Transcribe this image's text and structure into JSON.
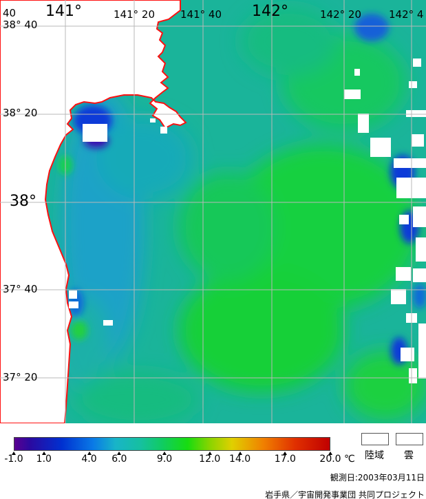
{
  "map": {
    "latitude_labels": [
      {
        "text": "38° 40",
        "lat": 38.6667
      },
      {
        "text": "38° 20",
        "lat": 38.3333
      },
      {
        "text": "38°",
        "lat": 38.0
      },
      {
        "text": "37° 40",
        "lat": 37.6667
      },
      {
        "text": "37° 20",
        "lat": 37.3333
      }
    ],
    "longitude_labels": [
      {
        "text": "141°",
        "lon": 141.0
      },
      {
        "text": "141° 20",
        "lon": 141.3333
      },
      {
        "text": "141° 40",
        "lon": 141.6667
      },
      {
        "text": "142°",
        "lon": 142.0
      },
      {
        "text": "142° 20",
        "lon": 142.3333
      },
      {
        "text": "142° 4",
        "lon": 142.6667
      }
    ],
    "edge_fragment_label": "40",
    "colors": {
      "ocean_base": "#1ab8a0",
      "warm": "#14d040",
      "cool": "#1a9ad0",
      "cold": "#0a3ad8",
      "very_cold": "#3a10b0",
      "land": "#ffffff",
      "coastline": "#ff1010",
      "grid": "#b8b8b8"
    }
  },
  "colorbar": {
    "unit": "℃",
    "min": -1.0,
    "max": 20.0,
    "ticks": [
      "-1.0",
      "1.0",
      "4.0",
      "6.0",
      "9.0",
      "12.0",
      "14.0",
      "17.0",
      "20.0"
    ],
    "tick_values": [
      -1.0,
      1.0,
      4.0,
      6.0,
      9.0,
      12.0,
      14.0,
      17.0,
      20.0
    ]
  },
  "legend": {
    "land": "陸域",
    "cloud": "雲"
  },
  "footer": {
    "observation_date": "観測日:2003年03月11日",
    "credit": "岩手県／宇宙開発事業団 共同プロジェクト"
  }
}
